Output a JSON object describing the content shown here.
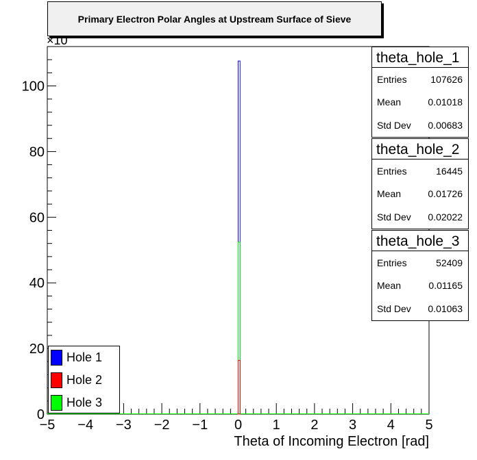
{
  "chart_data": {
    "type": "bar",
    "title": "Primary Electron Polar Angles at Upstream Surface of Sieve",
    "xlabel": "Theta of Incoming Electron [rad]",
    "ylabel": "",
    "y_exponent_label": "×10",
    "xlim": [
      -5,
      5
    ],
    "ylim": [
      0,
      112
    ],
    "x_ticks": [
      "−5",
      "−4",
      "−3",
      "−2",
      "−1",
      "0",
      "1",
      "2",
      "3",
      "4",
      "5"
    ],
    "y_ticks": [
      "0",
      "20",
      "40",
      "60",
      "80",
      "100"
    ],
    "series": [
      {
        "name": "Hole 1",
        "color": "#0000ff",
        "bin_x": [
          0.0,
          0.05
        ],
        "values": [
          107.6,
          0.0
        ]
      },
      {
        "name": "Hole 2",
        "color": "#ff0000",
        "bin_x": [
          0.0,
          0.05
        ],
        "values": [
          16.4,
          0.0
        ]
      },
      {
        "name": "Hole 3",
        "color": "#00ff00",
        "bin_x": [
          0.0,
          0.05
        ],
        "values": [
          52.4,
          0.0
        ]
      }
    ],
    "legend_position": "bottom-left"
  },
  "stats": [
    {
      "name": "theta_hole_1",
      "entries_label": "Entries",
      "entries": "107626",
      "mean_label": "Mean",
      "mean": "0.01018",
      "std_label": "Std Dev",
      "std": "0.00683"
    },
    {
      "name": "theta_hole_2",
      "entries_label": "Entries",
      "entries": "16445",
      "mean_label": "Mean",
      "mean": "0.01726",
      "std_label": "Std Dev",
      "std": "0.02022"
    },
    {
      "name": "theta_hole_3",
      "entries_label": "Entries",
      "entries": "52409",
      "mean_label": "Mean",
      "mean": "0.01165",
      "std_label": "Std Dev",
      "std": "0.01063"
    }
  ],
  "legend": [
    {
      "label": "Hole 1",
      "color": "#0000ff"
    },
    {
      "label": "Hole 2",
      "color": "#ff0000"
    },
    {
      "label": "Hole 3",
      "color": "#00ff00"
    }
  ]
}
